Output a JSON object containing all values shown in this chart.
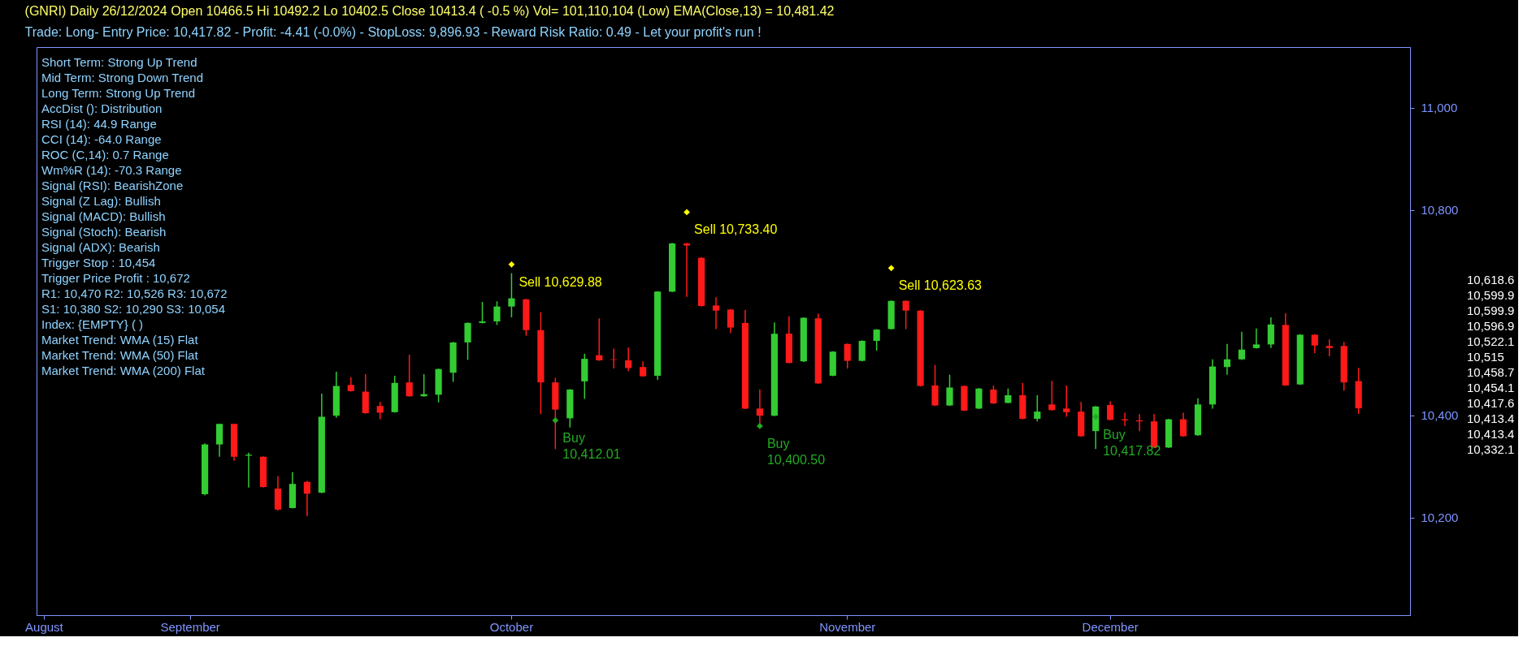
{
  "chart_data": {
    "type": "candlestick",
    "title": "(GNRI) Daily  26/12/2024   Open 10466.5  Hi 10492.2  Lo 10402.5  Close 10413.4 ( -0.5 %)  Vol= 101,110,104 (Low)  EMA(Close,13) = 10,481.42",
    "subtitle": "Trade: Long- Entry Price: 10,417.82 - Profit: -4.41 (-0.0%) - StopLoss: 9,896.93 - Reward Risk Ratio: 0.49 -  Let your profit's run !",
    "categories": [
      "August",
      null,
      null,
      null,
      null,
      null,
      null,
      null,
      null,
      null,
      "September",
      null,
      null,
      null,
      null,
      null,
      null,
      null,
      null,
      null,
      null,
      null,
      null,
      null,
      null,
      null,
      null,
      null,
      null,
      null,
      null,
      null,
      "October",
      null,
      null,
      null,
      null,
      null,
      null,
      null,
      null,
      null,
      null,
      null,
      null,
      null,
      null,
      null,
      null,
      null,
      null,
      null,
      null,
      null,
      null,
      "November",
      null,
      null,
      null,
      null,
      null,
      null,
      null,
      null,
      null,
      null,
      null,
      null,
      null,
      null,
      null,
      null,
      null,
      "December",
      null,
      null,
      null,
      null,
      null,
      null,
      null,
      null,
      null,
      null,
      null,
      null,
      null,
      null,
      null,
      null,
      null,
      null,
      null,
      null
    ],
    "ohlc": [
      null,
      null,
      null,
      null,
      null,
      null,
      null,
      null,
      null,
      null,
      null,
      [
        10246,
        10345,
        10244,
        10343
      ],
      [
        10343,
        10383,
        10319,
        10383
      ],
      [
        10383,
        10383,
        10311,
        10319
      ],
      [
        10321,
        10327,
        10259,
        10323
      ],
      [
        10319,
        10320,
        10259,
        10260
      ],
      [
        10257,
        10281,
        10214,
        10216
      ],
      [
        10219,
        10289,
        10218,
        10266
      ],
      [
        10270,
        10272,
        10203,
        10247
      ],
      [
        10249,
        10442,
        10248,
        10397
      ],
      [
        10399,
        10485,
        10395,
        10457
      ],
      [
        10459,
        10474,
        10446,
        10447
      ],
      [
        10446,
        10480,
        10403,
        10404
      ],
      [
        10418,
        10426,
        10392,
        10405
      ],
      [
        10406,
        10477,
        10405,
        10463
      ],
      [
        10464,
        10518,
        10436,
        10437
      ],
      [
        10437,
        10480,
        10436,
        10441
      ],
      [
        10440,
        10491,
        10425,
        10490
      ],
      [
        10483,
        10543,
        10465,
        10542
      ],
      [
        10542,
        10581,
        10508,
        10580
      ],
      [
        10580,
        10621,
        10579,
        10583
      ],
      [
        10583,
        10622,
        10576,
        10612
      ],
      [
        10612,
        10677,
        10591,
        10628
      ],
      [
        10626,
        10627,
        10555,
        10566
      ],
      [
        10566,
        10601,
        10402,
        10464
      ],
      [
        10464,
        10473,
        10334,
        10411
      ],
      [
        10394,
        10451,
        10376,
        10450
      ],
      [
        10466,
        10520,
        10432,
        10510
      ],
      [
        10517,
        10589,
        10506,
        10507
      ],
      [
        10509,
        10530,
        10491,
        10508
      ],
      [
        10507,
        10532,
        10486,
        10492
      ],
      [
        10494,
        10505,
        10475,
        10476
      ],
      [
        10477,
        10642,
        10469,
        10641
      ],
      [
        10641,
        10736,
        10640,
        10735
      ],
      [
        10735,
        10736,
        10631,
        10731
      ],
      [
        10707,
        10708,
        10612,
        10613
      ],
      [
        10614,
        10630,
        10568,
        10604
      ],
      [
        10606,
        10607,
        10560,
        10571
      ],
      [
        10580,
        10605,
        10412,
        10413
      ],
      [
        10413,
        10450,
        10384,
        10399
      ],
      [
        10399,
        10581,
        10398,
        10559
      ],
      [
        10559,
        10593,
        10501,
        10502
      ],
      [
        10505,
        10591,
        10504,
        10590
      ],
      [
        10589,
        10598,
        10461,
        10462
      ],
      [
        10477,
        10525,
        10476,
        10524
      ],
      [
        10539,
        10540,
        10491,
        10506
      ],
      [
        10506,
        10546,
        10505,
        10545
      ],
      [
        10545,
        10568,
        10526,
        10567
      ],
      [
        10568,
        10624,
        10567,
        10623
      ],
      [
        10623,
        10624,
        10568,
        10604
      ],
      [
        10604,
        10605,
        10456,
        10457
      ],
      [
        10458,
        10498,
        10418,
        10419
      ],
      [
        10419,
        10479,
        10418,
        10454
      ],
      [
        10457,
        10458,
        10408,
        10409
      ],
      [
        10413,
        10453,
        10412,
        10452
      ],
      [
        10450,
        10458,
        10422,
        10423
      ],
      [
        10424,
        10452,
        10423,
        10439
      ],
      [
        10439,
        10463,
        10392,
        10393
      ],
      [
        10393,
        10439,
        10388,
        10407
      ],
      [
        10421,
        10467,
        10409,
        10410
      ],
      [
        10413,
        10458,
        10397,
        10406
      ],
      [
        10407,
        10426,
        10358,
        10359
      ],
      [
        10369,
        10418,
        10334,
        10417
      ],
      [
        10420,
        10427,
        10390,
        10391
      ],
      [
        10392,
        10405,
        10379,
        10390
      ],
      [
        10390,
        10402,
        10369,
        10388
      ],
      [
        10388,
        10402,
        10336,
        10337
      ],
      [
        10337,
        10393,
        10336,
        10392
      ],
      [
        10392,
        10405,
        10358,
        10359
      ],
      [
        10361,
        10433,
        10360,
        10421
      ],
      [
        10421,
        10509,
        10413,
        10495
      ],
      [
        10494,
        10539,
        10479,
        10509
      ],
      [
        10509,
        10563,
        10508,
        10528
      ],
      [
        10531,
        10569,
        10530,
        10538
      ],
      [
        10538,
        10591,
        10531,
        10577
      ],
      [
        10576,
        10599,
        10457,
        10458
      ],
      [
        10460,
        10558,
        10459,
        10557
      ],
      [
        10557,
        10558,
        10521,
        10536
      ],
      [
        10535,
        10548,
        10515,
        10531
      ],
      [
        10535,
        10543,
        10448,
        10464
      ],
      [
        10466.5,
        10492.2,
        10402.5,
        10413.4
      ],
      null,
      null,
      null
    ],
    "series": [
      {
        "type": "scatter",
        "color": "#ffff00",
        "marker": "diamond",
        "values": [
          null,
          null,
          null,
          null,
          null,
          null,
          null,
          null,
          null,
          null,
          null,
          null,
          null,
          null,
          null,
          null,
          null,
          null,
          null,
          null,
          null,
          null,
          null,
          null,
          null,
          null,
          null,
          null,
          null,
          null,
          null,
          null,
          10694,
          null,
          null,
          null,
          null,
          null,
          null,
          null,
          null,
          null,
          null,
          null,
          10796,
          null,
          null,
          null,
          null,
          null,
          null,
          null,
          null,
          null,
          null,
          null,
          null,
          null,
          10687,
          null,
          null,
          null,
          null,
          null,
          null,
          null,
          null,
          null,
          null,
          null,
          null,
          null,
          null,
          null,
          null,
          null,
          null,
          null,
          null,
          null,
          null,
          null,
          null,
          null,
          null,
          null,
          null,
          null,
          null,
          null,
          null,
          null,
          null,
          null
        ],
        "value_labels": [
          null,
          null,
          null,
          null,
          null,
          null,
          null,
          null,
          null,
          null,
          null,
          null,
          null,
          null,
          null,
          null,
          null,
          null,
          null,
          null,
          null,
          null,
          null,
          null,
          null,
          null,
          null,
          null,
          null,
          null,
          null,
          null,
          "Sell  10,629.88",
          null,
          null,
          null,
          null,
          null,
          null,
          null,
          null,
          null,
          null,
          null,
          "Sell  10,733.40",
          null,
          null,
          null,
          null,
          null,
          null,
          null,
          null,
          null,
          null,
          null,
          null,
          null,
          "Sell  10,623.63",
          null,
          null,
          null,
          null,
          null,
          null,
          null,
          null,
          null,
          null,
          null,
          null,
          null,
          null,
          null,
          null,
          null,
          null,
          null,
          null,
          null,
          null,
          null,
          null,
          null,
          null,
          null,
          null,
          null,
          null,
          null,
          null,
          null,
          null,
          null
        ]
      },
      {
        "type": "scatter",
        "color": "#22aa22",
        "marker": "diamond",
        "values": [
          null,
          null,
          null,
          null,
          null,
          null,
          null,
          null,
          null,
          null,
          null,
          null,
          null,
          null,
          null,
          null,
          null,
          null,
          null,
          null,
          null,
          null,
          null,
          null,
          null,
          null,
          null,
          null,
          null,
          null,
          null,
          null,
          null,
          null,
          null,
          10390,
          null,
          null,
          null,
          null,
          null,
          null,
          null,
          null,
          null,
          null,
          null,
          null,
          null,
          10379,
          null,
          null,
          null,
          null,
          null,
          null,
          null,
          null,
          null,
          null,
          null,
          null,
          null,
          null,
          null,
          null,
          null,
          null,
          null,
          null,
          null,
          null,
          10397,
          null,
          null,
          null,
          null,
          null,
          null,
          null,
          null,
          null,
          null,
          null,
          null,
          null,
          null,
          null,
          null,
          null,
          null,
          null,
          null,
          null
        ],
        "value_labels": [
          null,
          null,
          null,
          null,
          null,
          null,
          null,
          null,
          null,
          null,
          null,
          null,
          null,
          null,
          null,
          null,
          null,
          null,
          null,
          null,
          null,
          null,
          null,
          null,
          null,
          null,
          null,
          null,
          null,
          null,
          null,
          null,
          null,
          null,
          null,
          "Buy\n10,412.01",
          null,
          null,
          null,
          null,
          null,
          null,
          null,
          null,
          null,
          null,
          null,
          null,
          null,
          "Buy\n10,400.50",
          null,
          null,
          null,
          null,
          null,
          null,
          null,
          null,
          null,
          null,
          null,
          null,
          null,
          null,
          null,
          null,
          null,
          null,
          null,
          null,
          null,
          null,
          "Buy\n10,417.82",
          null,
          null,
          null,
          null,
          null,
          null,
          null,
          null,
          null,
          null,
          null,
          null,
          null,
          null,
          null,
          null,
          null,
          null,
          null,
          null,
          null
        ]
      }
    ],
    "ylim": [
      10010,
      11118
    ],
    "yticks": [
      {
        "value": 10200,
        "label": "10,200"
      },
      {
        "value": 10400,
        "label": "10,400"
      },
      {
        "value": 10800,
        "label": "10,800"
      },
      {
        "value": 11000,
        "label": "11,000"
      }
    ],
    "legend": false,
    "grid": false,
    "annotations": [
      "Short Term: Strong Up Trend",
      "Mid Term: Strong Down Trend",
      "Long Term: Strong Up Trend",
      "AccDist (): Distribution",
      "RSI (14): 44.9 Range",
      "CCI (14): -64.0 Range",
      "ROC (C,14): 0.7 Range",
      "Wm%R (14): -70.3 Range",
      "Signal (RSI): BearishZone",
      "Signal (Z Lag): Bullish",
      "Signal (MACD): Bullish",
      "Signal (Stoch): Bearish",
      "Signal (ADX): Bearish",
      "Trigger Stop : 10,454",
      "Trigger Price Profit : 10,672",
      "R1: 10,470 R2: 10,526 R3: 10,672",
      "S1: 10,380 S2: 10,290 S3: 10,054",
      "Index: {EMPTY} ( )",
      "Market Trend: WMA (15) Flat",
      "Market Trend: WMA (50) Flat",
      "Market Trend: WMA (200) Flat",
      "10,618.6",
      "10,599.9",
      "10,599.9",
      "10,596.9",
      "10,522.1",
      "10,515",
      "10,458.7",
      "10,454.1",
      "10,417.6",
      "10,413.4",
      "10,413.4",
      "10,332.1"
    ]
  }
}
